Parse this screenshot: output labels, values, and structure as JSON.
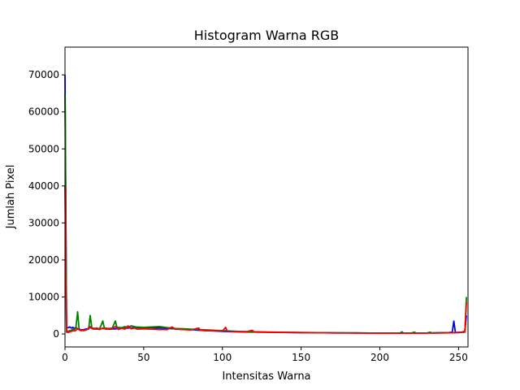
{
  "chart_data": {
    "type": "line",
    "title": "Histogram Warna RGB",
    "xlabel": "Intensitas Warna",
    "ylabel": "Jumlah Pixel",
    "xlim": [
      0,
      256
    ],
    "ylim": [
      -3500,
      77500
    ],
    "xticks": [
      0,
      50,
      100,
      150,
      200,
      250
    ],
    "yticks": [
      0,
      10000,
      20000,
      30000,
      40000,
      50000,
      60000,
      70000
    ],
    "grid": false,
    "series": [
      {
        "color": "#0000ff",
        "points": [
          [
            0,
            70000
          ],
          [
            1,
            1800
          ],
          [
            2,
            1700
          ],
          [
            3,
            1900
          ],
          [
            4,
            1600
          ],
          [
            5,
            1800
          ],
          [
            6,
            1500
          ],
          [
            7,
            1700
          ],
          [
            8,
            1300
          ],
          [
            9,
            1400
          ],
          [
            10,
            1100
          ],
          [
            12,
            1200
          ],
          [
            14,
            1400
          ],
          [
            16,
            1700
          ],
          [
            18,
            1500
          ],
          [
            20,
            1300
          ],
          [
            24,
            1500
          ],
          [
            28,
            1300
          ],
          [
            32,
            1400
          ],
          [
            36,
            1500
          ],
          [
            40,
            1600
          ],
          [
            45,
            1700
          ],
          [
            50,
            1800
          ],
          [
            55,
            1700
          ],
          [
            60,
            1600
          ],
          [
            65,
            1500
          ],
          [
            70,
            1400
          ],
          [
            75,
            1300
          ],
          [
            80,
            1200
          ],
          [
            85,
            1000
          ],
          [
            90,
            900
          ],
          [
            95,
            800
          ],
          [
            100,
            700
          ],
          [
            105,
            650
          ],
          [
            110,
            600
          ],
          [
            115,
            550
          ],
          [
            120,
            500
          ],
          [
            125,
            480
          ],
          [
            130,
            450
          ],
          [
            135,
            420
          ],
          [
            140,
            400
          ],
          [
            145,
            380
          ],
          [
            150,
            360
          ],
          [
            155,
            350
          ],
          [
            160,
            330
          ],
          [
            165,
            320
          ],
          [
            170,
            300
          ],
          [
            175,
            290
          ],
          [
            180,
            280
          ],
          [
            185,
            270
          ],
          [
            190,
            260
          ],
          [
            195,
            250
          ],
          [
            200,
            240
          ],
          [
            205,
            230
          ],
          [
            210,
            230
          ],
          [
            215,
            220
          ],
          [
            220,
            230
          ],
          [
            225,
            240
          ],
          [
            230,
            260
          ],
          [
            235,
            300
          ],
          [
            240,
            350
          ],
          [
            244,
            400
          ],
          [
            246,
            500
          ],
          [
            247,
            3500
          ],
          [
            248,
            400
          ],
          [
            250,
            450
          ],
          [
            252,
            500
          ],
          [
            254,
            700
          ],
          [
            255,
            5000
          ]
        ]
      },
      {
        "color": "#008000",
        "points": [
          [
            0,
            65000
          ],
          [
            1,
            800
          ],
          [
            2,
            700
          ],
          [
            3,
            900
          ],
          [
            4,
            1000
          ],
          [
            5,
            1300
          ],
          [
            6,
            1200
          ],
          [
            7,
            2000
          ],
          [
            8,
            6000
          ],
          [
            9,
            1200
          ],
          [
            10,
            1000
          ],
          [
            12,
            900
          ],
          [
            14,
            1200
          ],
          [
            15,
            1300
          ],
          [
            16,
            5000
          ],
          [
            17,
            1800
          ],
          [
            18,
            1500
          ],
          [
            20,
            1600
          ],
          [
            22,
            1400
          ],
          [
            24,
            3500
          ],
          [
            25,
            1600
          ],
          [
            28,
            1500
          ],
          [
            30,
            1600
          ],
          [
            32,
            3500
          ],
          [
            33,
            1800
          ],
          [
            36,
            1700
          ],
          [
            38,
            2000
          ],
          [
            40,
            1800
          ],
          [
            42,
            2200
          ],
          [
            45,
            1900
          ],
          [
            50,
            1800
          ],
          [
            55,
            1900
          ],
          [
            60,
            2000
          ],
          [
            65,
            1700
          ],
          [
            68,
            1600
          ],
          [
            70,
            1500
          ],
          [
            75,
            1400
          ],
          [
            80,
            1300
          ],
          [
            85,
            1200
          ],
          [
            90,
            1100
          ],
          [
            95,
            1000
          ],
          [
            100,
            900
          ],
          [
            105,
            800
          ],
          [
            110,
            700
          ],
          [
            115,
            650
          ],
          [
            120,
            600
          ],
          [
            125,
            550
          ],
          [
            130,
            500
          ],
          [
            135,
            480
          ],
          [
            140,
            450
          ],
          [
            145,
            420
          ],
          [
            150,
            400
          ],
          [
            155,
            380
          ],
          [
            160,
            350
          ],
          [
            165,
            330
          ],
          [
            170,
            310
          ],
          [
            175,
            300
          ],
          [
            180,
            290
          ],
          [
            185,
            280
          ],
          [
            190,
            270
          ],
          [
            195,
            260
          ],
          [
            200,
            260
          ],
          [
            205,
            250
          ],
          [
            210,
            250
          ],
          [
            213,
            260
          ],
          [
            214,
            600
          ],
          [
            215,
            250
          ],
          [
            220,
            250
          ],
          [
            222,
            500
          ],
          [
            223,
            250
          ],
          [
            230,
            260
          ],
          [
            232,
            500
          ],
          [
            233,
            250
          ],
          [
            240,
            300
          ],
          [
            245,
            350
          ],
          [
            250,
            400
          ],
          [
            254,
            500
          ],
          [
            255,
            10000
          ]
        ]
      },
      {
        "color": "#ff0000",
        "points": [
          [
            0,
            40000
          ],
          [
            1,
            500
          ],
          [
            2,
            400
          ],
          [
            3,
            600
          ],
          [
            4,
            700
          ],
          [
            5,
            900
          ],
          [
            6,
            800
          ],
          [
            7,
            1000
          ],
          [
            8,
            1500
          ],
          [
            9,
            1100
          ],
          [
            10,
            900
          ],
          [
            12,
            1000
          ],
          [
            14,
            1200
          ],
          [
            16,
            2000
          ],
          [
            17,
            1500
          ],
          [
            18,
            1300
          ],
          [
            20,
            1400
          ],
          [
            22,
            1200
          ],
          [
            24,
            1600
          ],
          [
            26,
            1300
          ],
          [
            28,
            1400
          ],
          [
            30,
            1500
          ],
          [
            32,
            2000
          ],
          [
            34,
            1200
          ],
          [
            36,
            1600
          ],
          [
            38,
            1300
          ],
          [
            40,
            2200
          ],
          [
            42,
            1400
          ],
          [
            44,
            1600
          ],
          [
            46,
            1300
          ],
          [
            50,
            1400
          ],
          [
            55,
            1300
          ],
          [
            60,
            1200
          ],
          [
            65,
            1200
          ],
          [
            68,
            1900
          ],
          [
            70,
            1300
          ],
          [
            75,
            1200
          ],
          [
            80,
            1100
          ],
          [
            85,
            1600
          ],
          [
            86,
            1000
          ],
          [
            90,
            900
          ],
          [
            95,
            850
          ],
          [
            100,
            800
          ],
          [
            102,
            1800
          ],
          [
            103,
            800
          ],
          [
            105,
            700
          ],
          [
            110,
            650
          ],
          [
            115,
            600
          ],
          [
            119,
            1000
          ],
          [
            120,
            550
          ],
          [
            125,
            520
          ],
          [
            130,
            500
          ],
          [
            135,
            470
          ],
          [
            140,
            440
          ],
          [
            145,
            410
          ],
          [
            150,
            380
          ],
          [
            155,
            360
          ],
          [
            160,
            340
          ],
          [
            165,
            320
          ],
          [
            170,
            300
          ],
          [
            175,
            290
          ],
          [
            180,
            280
          ],
          [
            185,
            270
          ],
          [
            190,
            260
          ],
          [
            195,
            250
          ],
          [
            200,
            250
          ],
          [
            205,
            240
          ],
          [
            210,
            240
          ],
          [
            215,
            240
          ],
          [
            220,
            240
          ],
          [
            225,
            250
          ],
          [
            230,
            260
          ],
          [
            235,
            280
          ],
          [
            240,
            300
          ],
          [
            245,
            330
          ],
          [
            250,
            380
          ],
          [
            253,
            450
          ],
          [
            254,
            600
          ],
          [
            255,
            8500
          ]
        ]
      }
    ]
  }
}
